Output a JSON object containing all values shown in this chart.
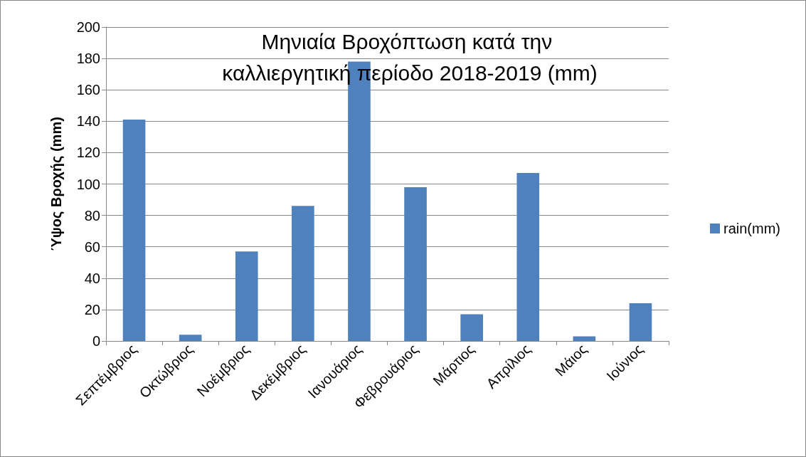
{
  "chart_data": {
    "type": "bar",
    "title": "Μηνιαία Βροχόπτωση κατά την καλλιεργητική περίοδο 2018-2019 (mm)",
    "ylabel": "Ύψος Βροχής (mm)",
    "categories": [
      "Σεπτέμβριος",
      "Οκτώβριος",
      "Νοέμβριος",
      "Δεκέμβριος",
      "Ιανουάριος",
      "Φεβρουάριος",
      "Μάρτιος",
      "Απρίλιος",
      "Μάιος",
      "Ιούνιος"
    ],
    "series": [
      {
        "name": "rain(mm)",
        "color": "#4f81bd",
        "values": [
          141,
          4,
          57,
          86,
          178,
          98,
          17,
          107,
          3,
          24
        ]
      }
    ],
    "ylim": [
      0,
      200
    ],
    "yticks": [
      0,
      20,
      40,
      60,
      80,
      100,
      120,
      140,
      160,
      180,
      200
    ],
    "grid": "y",
    "legend": "right"
  }
}
